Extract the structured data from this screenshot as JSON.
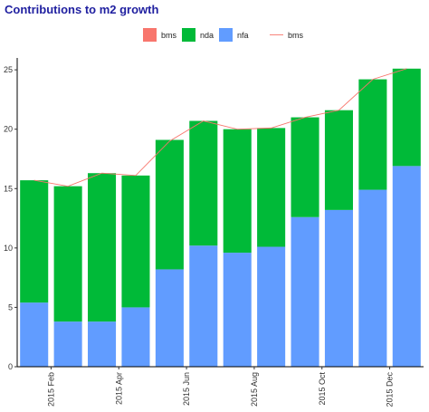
{
  "chart_data": {
    "type": "bar",
    "stacked": true,
    "title": "Contributions to m2 growth",
    "xlabel": "",
    "ylabel": "",
    "ylim": [
      0,
      26
    ],
    "yticks": [
      0,
      5,
      10,
      15,
      20,
      25
    ],
    "x_tick_labels": [
      "2015 Feb",
      "2015 Apr",
      "2015 Jun",
      "2015 Aug",
      "2015 Oct",
      "2015 Dec"
    ],
    "grid": false,
    "legend_position": "top",
    "legend": [
      {
        "name": "bms",
        "kind": "fill",
        "color": "#f8766d"
      },
      {
        "name": "nda",
        "kind": "fill",
        "color": "#00ba38"
      },
      {
        "name": "nfa",
        "kind": "fill",
        "color": "#619cff"
      },
      {
        "name": "bms",
        "kind": "line",
        "color": "#f8766d"
      }
    ],
    "months": 12,
    "series": [
      {
        "name": "nfa",
        "values": [
          5.4,
          3.8,
          3.8,
          5.0,
          8.2,
          10.2,
          9.6,
          10.1,
          12.6,
          13.2,
          14.9,
          16.9
        ]
      },
      {
        "name": "nda",
        "values": [
          10.3,
          11.4,
          12.5,
          11.1,
          10.9,
          10.5,
          10.4,
          10.0,
          8.4,
          8.4,
          9.3,
          8.2
        ]
      },
      {
        "name": "bms",
        "values": [
          0,
          0,
          0,
          0,
          0,
          0,
          0,
          0,
          0,
          0,
          0,
          0
        ]
      }
    ],
    "line": {
      "name": "bms",
      "values": [
        15.7,
        15.2,
        16.3,
        16.1,
        19.0,
        20.7,
        20.0,
        20.1,
        21.0,
        21.6,
        24.2,
        25.1
      ]
    }
  }
}
